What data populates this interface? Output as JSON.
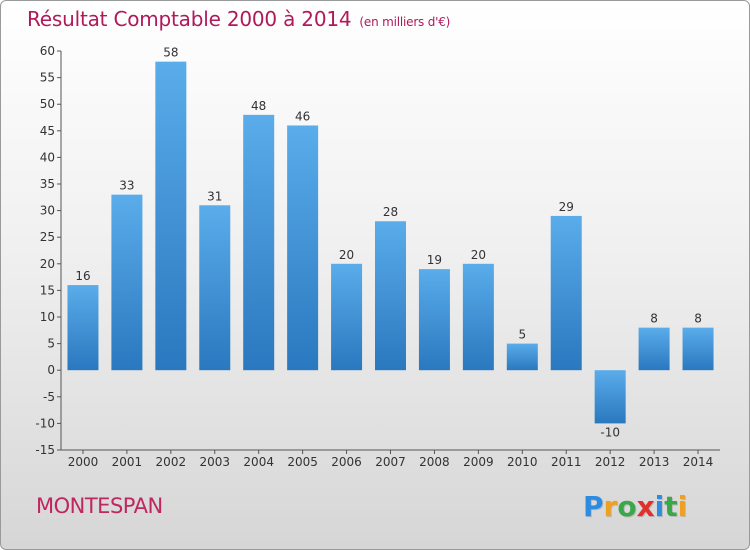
{
  "header": {
    "title": "Résultat Comptable 2000 à 2014",
    "subtitle": "(en milliers d'€)"
  },
  "footer": {
    "place": "MONTESPAN",
    "logo": "Proxiti",
    "logo_letters": [
      {
        "ch": "P",
        "color": "#2d8be0"
      },
      {
        "ch": "r",
        "color": "#f0a020"
      },
      {
        "ch": "o",
        "color": "#3aa84a"
      },
      {
        "ch": "x",
        "color": "#e0302a"
      },
      {
        "ch": "i",
        "color": "#2d8be0"
      },
      {
        "ch": "t",
        "color": "#3aa84a"
      },
      {
        "ch": "i",
        "color": "#f0a020"
      }
    ]
  },
  "colors": {
    "bar_top": "#5aacea",
    "bar_bottom": "#2a78bf",
    "title": "#b0195a"
  },
  "chart_data": {
    "type": "bar",
    "title": "Résultat Comptable 2000 à 2014",
    "subtitle": "(en milliers d'€)",
    "categories": [
      "2000",
      "2001",
      "2002",
      "2003",
      "2004",
      "2005",
      "2006",
      "2007",
      "2008",
      "2009",
      "2010",
      "2011",
      "2012",
      "2013",
      "2014"
    ],
    "values": [
      16,
      33,
      58,
      31,
      48,
      46,
      20,
      28,
      19,
      20,
      5,
      29,
      -10,
      8,
      8
    ],
    "value_labels": [
      "16",
      "33",
      "58",
      "31",
      "48",
      "46",
      "20",
      "28",
      "19",
      "20",
      "5",
      "29",
      "-10",
      "8",
      "8"
    ],
    "ylim": [
      -15,
      60
    ],
    "yticks": [
      -15,
      -10,
      -5,
      0,
      5,
      10,
      15,
      20,
      25,
      30,
      35,
      40,
      45,
      50,
      55,
      60
    ],
    "grid": false,
    "legend": "none"
  }
}
